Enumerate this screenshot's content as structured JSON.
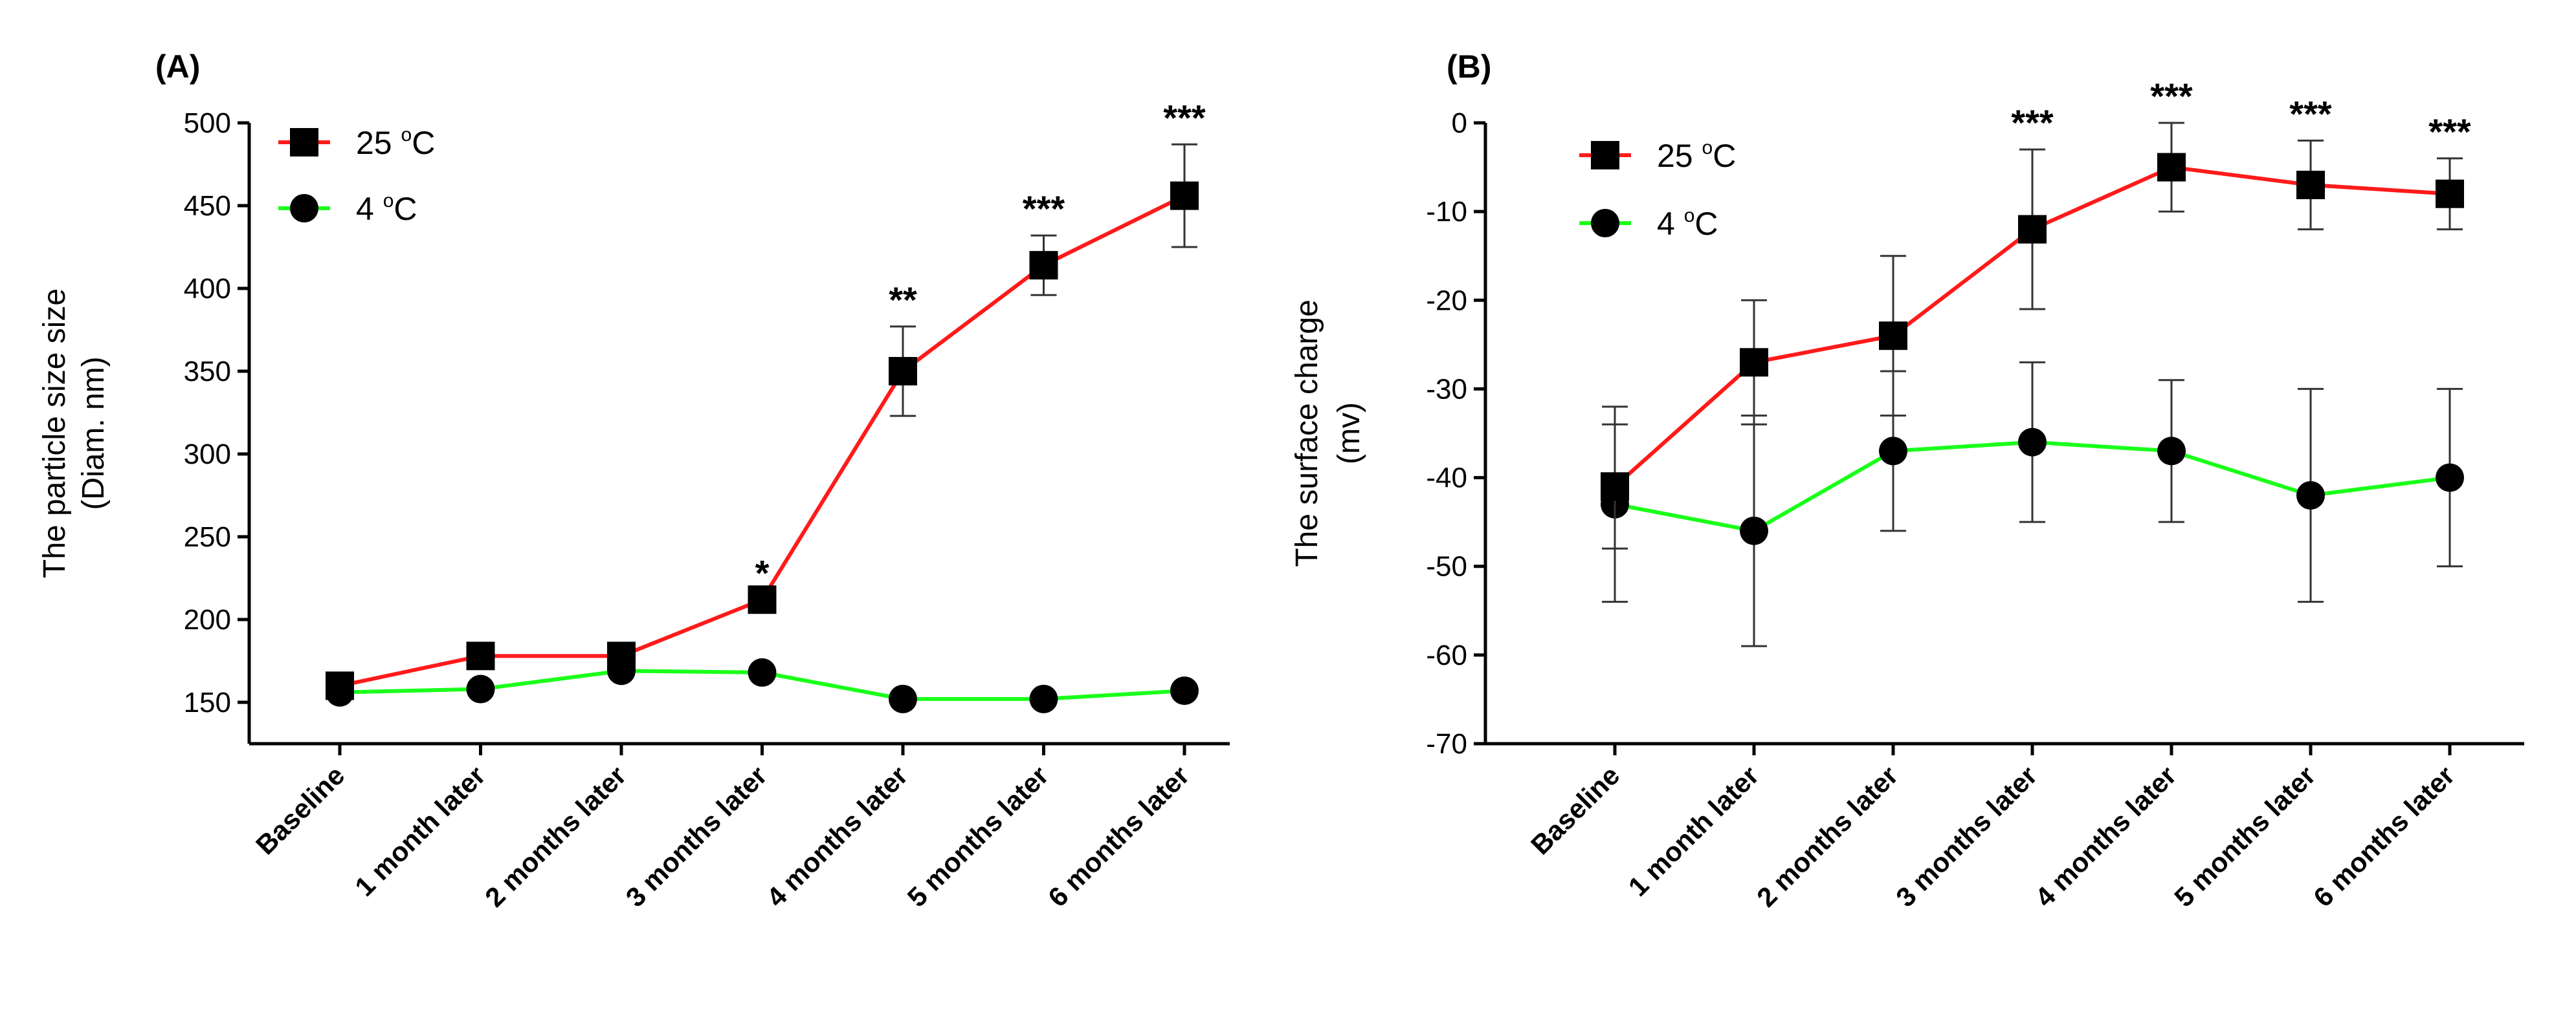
{
  "chart_data": [
    {
      "type": "line",
      "panel_label": "(A)",
      "title": "",
      "xlabel": "",
      "ylabel_line1": "The particle size size",
      "ylabel_line2": "(Diam. nm)",
      "ylim": [
        125,
        500
      ],
      "yticks": [
        150,
        200,
        250,
        300,
        350,
        400,
        450,
        500
      ],
      "categories": [
        "Baseline",
        "1 month later",
        "2 months later",
        "3 months later",
        "4 months later",
        "5 months later",
        "6 months later"
      ],
      "series": [
        {
          "name": "25 oC",
          "legend_base": "25 ",
          "legend_sup": "o",
          "legend_unit": "C",
          "color": "#ff1a1a",
          "marker": "square",
          "values": [
            160,
            178,
            178,
            212,
            350,
            414,
            456
          ],
          "errors": [
            null,
            null,
            null,
            null,
            27,
            18,
            31
          ]
        },
        {
          "name": "4 oC",
          "legend_base": "4 ",
          "legend_sup": "o",
          "legend_unit": "C",
          "color": "#1aff1a",
          "marker": "circle",
          "values": [
            156,
            158,
            169,
            168,
            152,
            152,
            157
          ],
          "errors": [
            null,
            null,
            null,
            null,
            null,
            null,
            null
          ]
        }
      ],
      "significance": [
        "",
        "",
        "",
        "*",
        "**",
        "***",
        "***"
      ]
    },
    {
      "type": "line",
      "panel_label": "(B)",
      "title": "",
      "xlabel": "",
      "ylabel_line1": "The surface charge",
      "ylabel_line2": "(mv)",
      "ylim": [
        -70,
        0
      ],
      "yticks": [
        0,
        -10,
        -20,
        -30,
        -40,
        -50,
        -60,
        -70
      ],
      "categories": [
        "Baseline",
        "1 month later",
        "2 months later",
        "3 months later",
        "4 months later",
        "5 months later",
        "6 months later"
      ],
      "series": [
        {
          "name": "25 oC",
          "legend_base": "25 ",
          "legend_sup": "o",
          "legend_unit": "C",
          "color": "#ff1a1a",
          "marker": "square",
          "values": [
            -41,
            -27,
            -24,
            -12,
            -5,
            -7,
            -8
          ],
          "errors": [
            7,
            7,
            9,
            9,
            5,
            5,
            4
          ]
        },
        {
          "name": "4 oC",
          "legend_base": "4 ",
          "legend_sup": "o",
          "legend_unit": "C",
          "color": "#1aff1a",
          "marker": "circle",
          "values": [
            -43,
            -46,
            -37,
            -36,
            -37,
            -42,
            -40
          ],
          "errors": [
            11,
            13,
            9,
            9,
            8,
            12,
            10
          ]
        }
      ],
      "significance": [
        "",
        "",
        "",
        "***",
        "***",
        "***",
        "***"
      ]
    }
  ]
}
